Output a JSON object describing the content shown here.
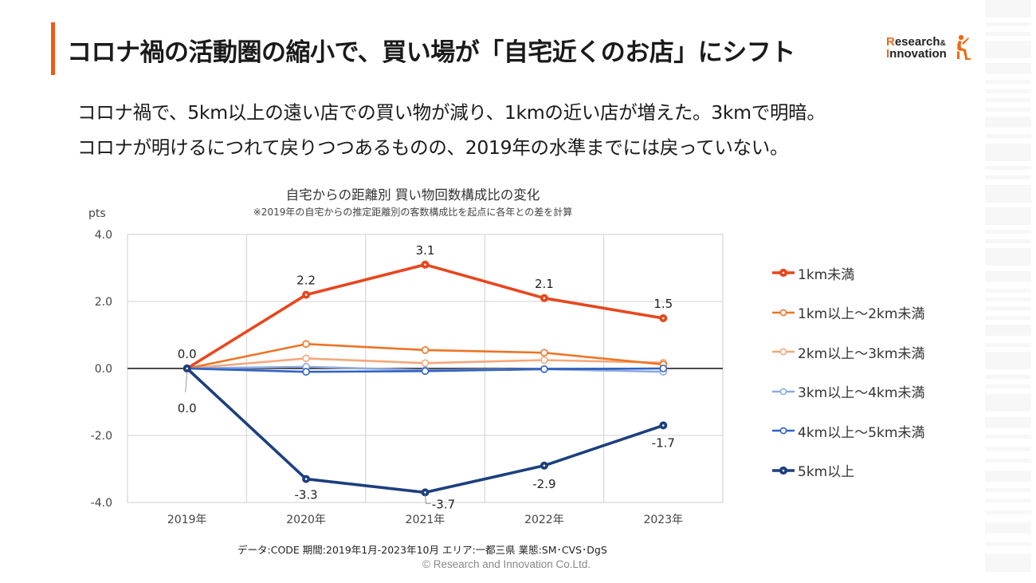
{
  "header": {
    "title": "コロナ禍の活動圏の縮小で、買い場が「自宅近くのお店」にシフト",
    "logo_line1_initial": "R",
    "logo_line1_rest": "esearch",
    "logo_amp": "&",
    "logo_line2_initial": "I",
    "logo_line2_rest": "nnovation",
    "accent_color": "#f05a14"
  },
  "lead": {
    "line1": "コロナ禍で、5km以上の遠い店での買い物が減り、1kmの近い店が増えた。3kmで明暗。",
    "line2": "コロナが明けるにつれて戻りつつあるものの、2019年の水準までには戻っていない。"
  },
  "chart_data": {
    "type": "line",
    "title": "自宅からの距離別 買い物回数構成比の変化",
    "subtitle": "※2019年の自宅からの推定距離別の客数構成比を起点に各年との差を計算",
    "ylabel": "pts",
    "xlabel": "",
    "ylim": [
      -4.0,
      4.0
    ],
    "yticks": [
      "4.0",
      "2.0",
      "0.0",
      "-2.0",
      "-4.0"
    ],
    "ytick_values": [
      4,
      2,
      0,
      -2,
      -4
    ],
    "categories": [
      "2019年",
      "2020年",
      "2021年",
      "2022年",
      "2023年"
    ],
    "grid": true,
    "legend_position": "right",
    "series": [
      {
        "name": "1km未満",
        "color": "#e8461e",
        "values": [
          0.0,
          2.2,
          3.1,
          2.1,
          1.5
        ],
        "labels": [
          "0.0",
          "2.2",
          "3.1",
          "2.1",
          "1.5"
        ],
        "bold": true
      },
      {
        "name": "1km以上～2km未満",
        "color": "#ee7424",
        "values": [
          0.0,
          0.73,
          0.55,
          0.47,
          0.12
        ],
        "labels": null,
        "bold": false
      },
      {
        "name": "2km以上～3km未満",
        "color": "#f5a77a",
        "values": [
          0.0,
          0.3,
          0.16,
          0.25,
          0.17
        ],
        "labels": null,
        "bold": false
      },
      {
        "name": "3km以上～4km未満",
        "color": "#8fa9dc",
        "values": [
          0.0,
          0.05,
          -0.05,
          -0.02,
          -0.1
        ],
        "labels": null,
        "bold": false
      },
      {
        "name": "4km以上～5km未満",
        "color": "#2f62c4",
        "values": [
          0.0,
          -0.1,
          -0.08,
          -0.02,
          0.0
        ],
        "labels": null,
        "bold": false
      },
      {
        "name": "5km以上",
        "color": "#1c3f7e",
        "values": [
          0.0,
          -3.3,
          -3.7,
          -2.9,
          -1.7
        ],
        "labels": [
          "0.0",
          "-3.3",
          "-3.7",
          "-2.9",
          "-1.7"
        ],
        "bold": true
      }
    ]
  },
  "footer": {
    "source": "データ:CODE  期間:2019年1月-2023年10月  エリア:一都三県  業態:SM･CVS･DgS",
    "copyright": "© Research and Innovation Co.Ltd."
  }
}
